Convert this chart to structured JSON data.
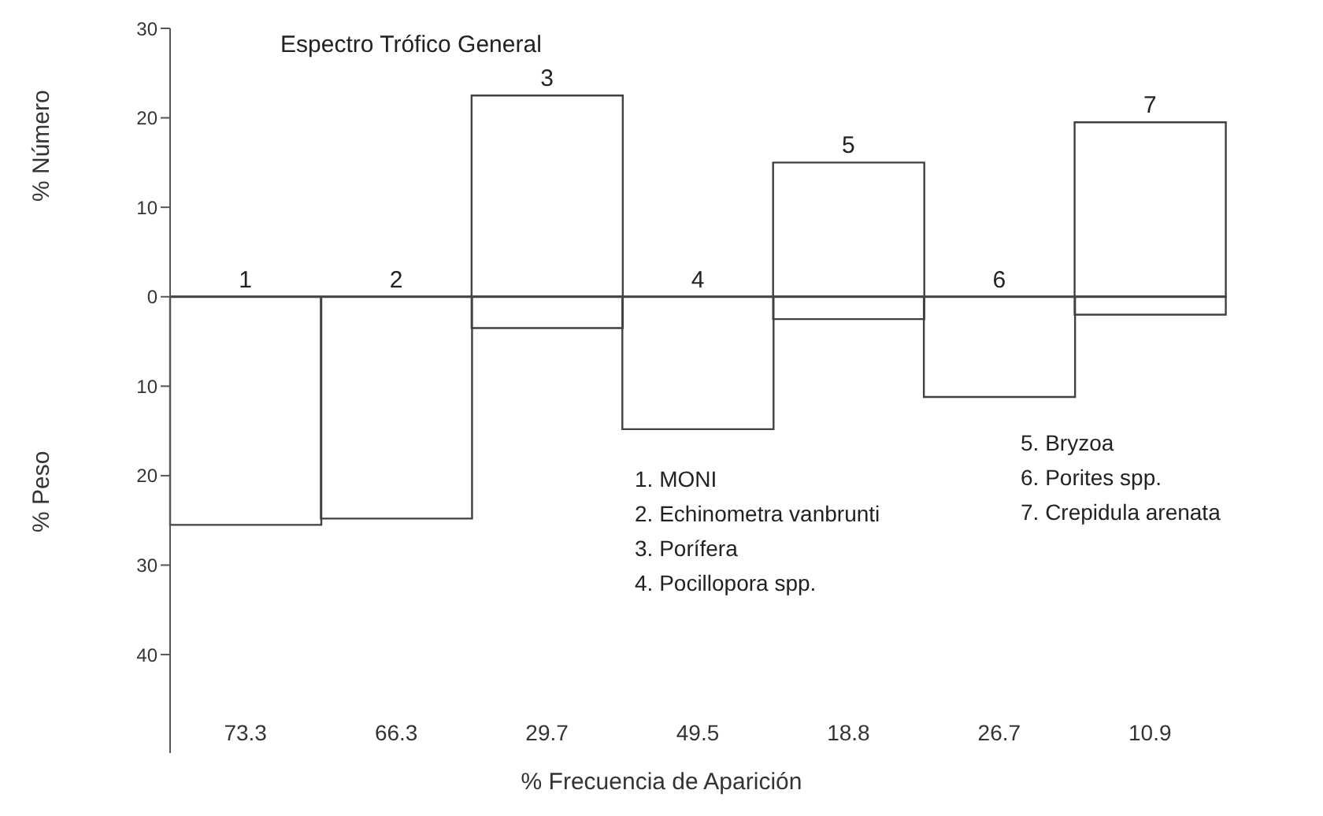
{
  "chart_data": {
    "type": "bar",
    "title": "Espectro Trófico General",
    "xlabel": "% Frecuencia de Aparición",
    "ylabel": "% Número",
    "y2label": "% Peso",
    "categories": [
      "1",
      "2",
      "3",
      "4",
      "5",
      "6",
      "7"
    ],
    "stacked": true,
    "tick_labels": "y",
    "ylim": [
      -51,
      30
    ],
    "yticks": [
      30,
      20,
      10,
      0,
      {
        "value": -10,
        "label": "10"
      },
      {
        "value": -20,
        "label": "20"
      },
      {
        "value": -30,
        "label": "30"
      },
      {
        "value": -40,
        "label": "40"
      }
    ],
    "series": [
      {
        "color": "#404040",
        "values": [
          0,
          0,
          22.5,
          0,
          15,
          0,
          19.5
        ]
      },
      {
        "color": "#404040",
        "values": [
          -25.5,
          -24.8,
          -3.5,
          -14.8,
          -2.5,
          -11.2,
          -2
        ]
      }
    ],
    "annotations": [
      "73.3",
      "66.3",
      "29.7",
      "49.5",
      "18.8",
      "26.7",
      "10.9",
      "1. MONI",
      "2. Echinometra vanbrunti",
      "3. Porífera",
      "4. Pocillopora spp.",
      "5. Bryzoa",
      "6. Porites spp.",
      "7. Crepidula arenata"
    ]
  }
}
